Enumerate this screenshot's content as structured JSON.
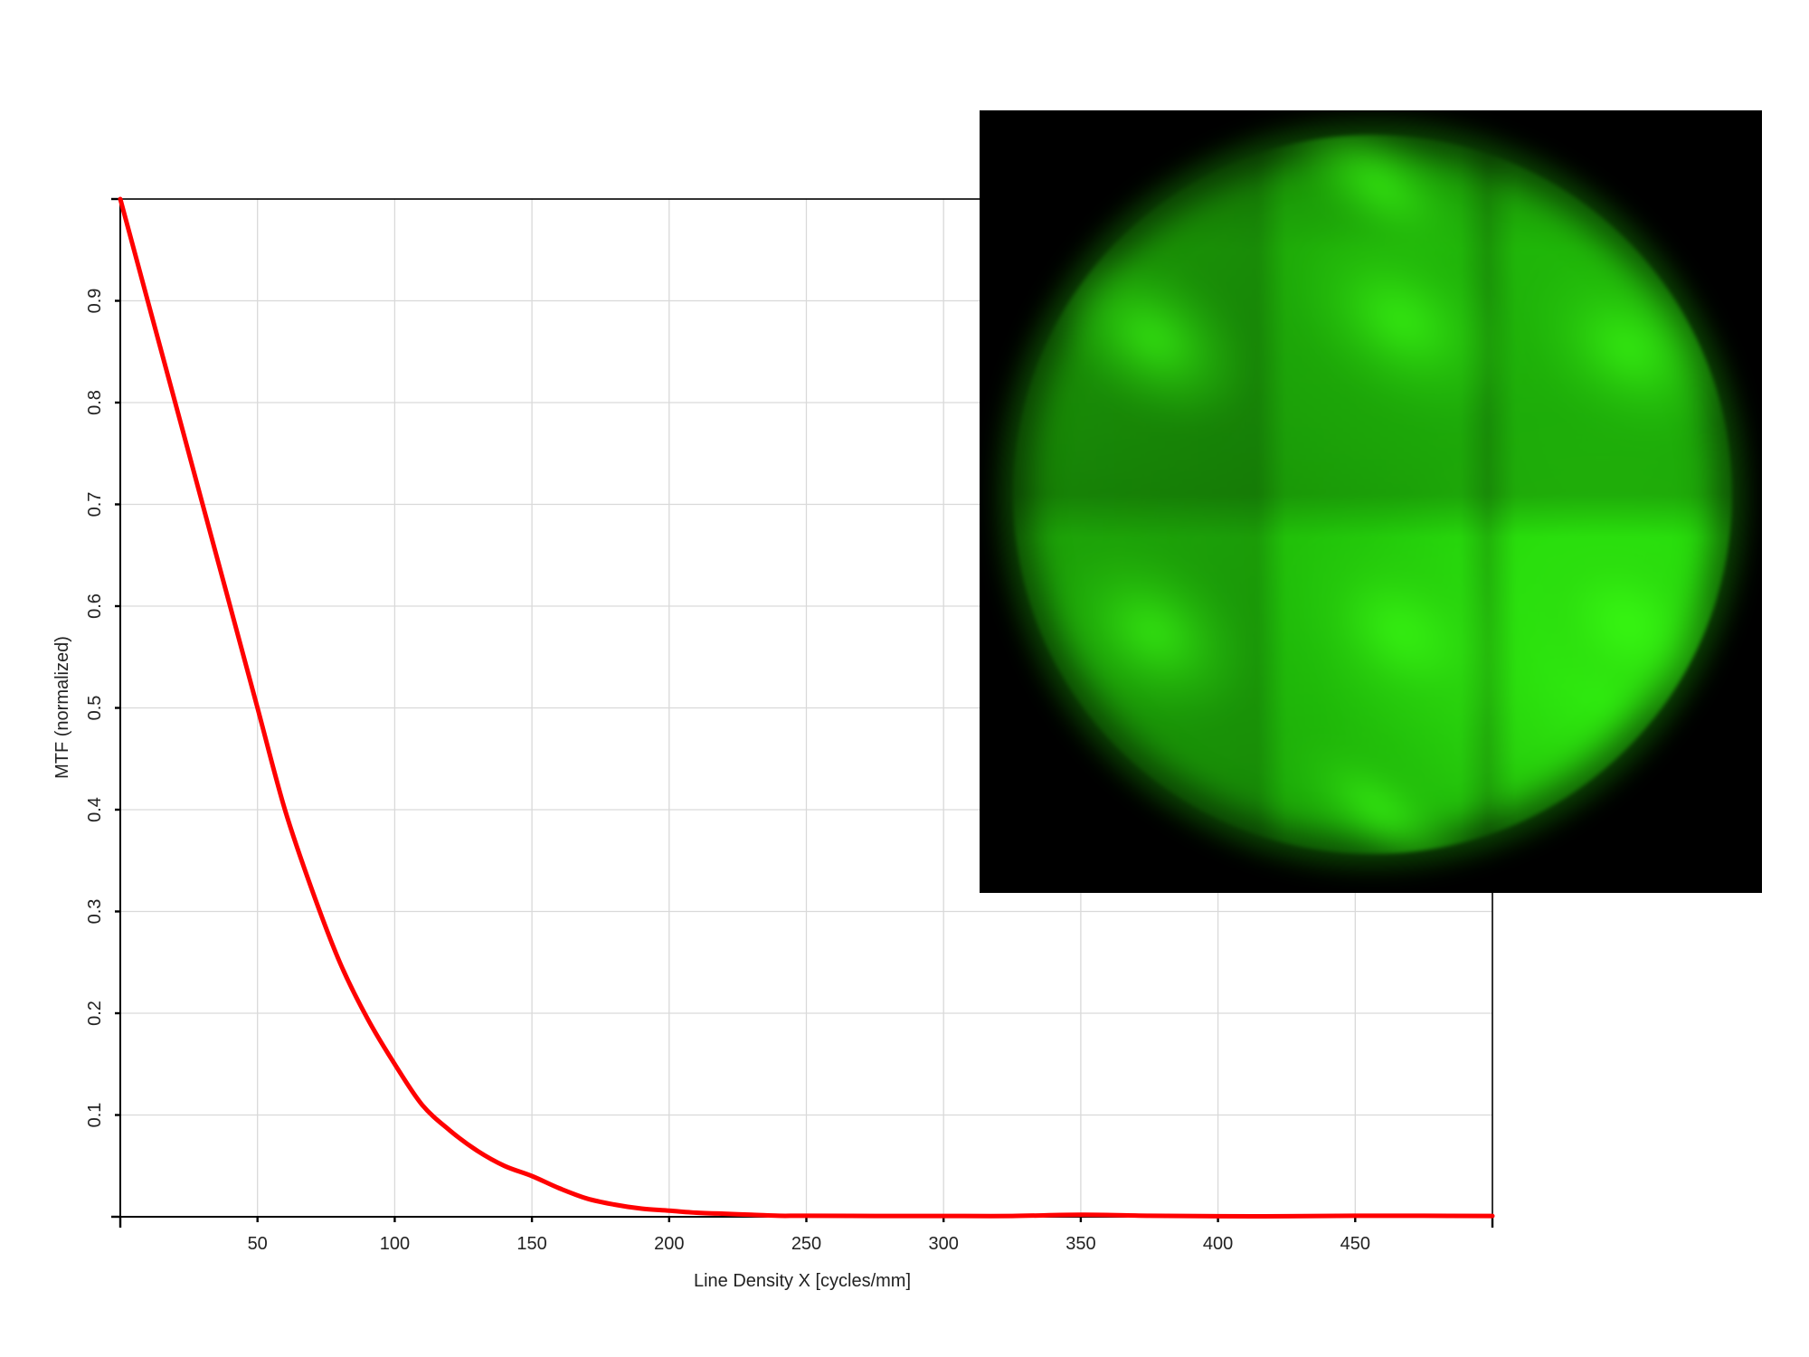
{
  "chart_data": {
    "type": "line",
    "title": "",
    "xlabel": "Line Density X [cycles/mm]",
    "ylabel": "MTF (normalized)",
    "xlim": [
      0,
      500
    ],
    "ylim": [
      0,
      1
    ],
    "x_ticks": [
      50,
      100,
      150,
      200,
      250,
      300,
      350,
      400,
      450
    ],
    "y_ticks": [
      0.1,
      0.2,
      0.3,
      0.4,
      0.5,
      0.6,
      0.7,
      0.8,
      0.9
    ],
    "grid": true,
    "series": [
      {
        "color": "#ff0000",
        "x": [
          0,
          10,
          20,
          30,
          40,
          50,
          60,
          70,
          80,
          90,
          100,
          110,
          120,
          130,
          140,
          150,
          160,
          170,
          180,
          190,
          200,
          210,
          220,
          230,
          240,
          250,
          275,
          300,
          325,
          350,
          375,
          400,
          425,
          450,
          475,
          500
        ],
        "y": [
          1.0,
          0.9,
          0.8,
          0.7,
          0.6,
          0.5,
          0.4,
          0.32,
          0.25,
          0.195,
          0.15,
          0.11,
          0.085,
          0.065,
          0.05,
          0.04,
          0.028,
          0.018,
          0.012,
          0.008,
          0.006,
          0.004,
          0.003,
          0.002,
          0.001,
          0.001,
          0.0008,
          0.0008,
          0.0008,
          0.002,
          0.001,
          0.0005,
          0.0005,
          0.001,
          0.001,
          0.0008
        ]
      }
    ]
  },
  "inset_image": {
    "kind": "green circular intensity pattern",
    "colors": {
      "background": "#000000",
      "bright": "#33ff10",
      "mid": "#22c80a",
      "dark": "#1a8e06"
    }
  }
}
